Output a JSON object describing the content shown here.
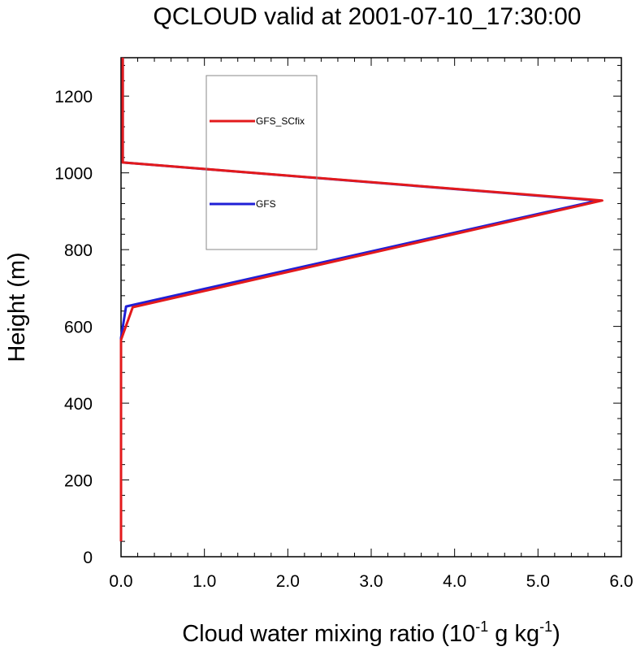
{
  "chart_data": {
    "type": "line",
    "title": "QCLOUD valid at 2001-07-10_17:30:00",
    "xlabel": {
      "main": "Cloud water mixing ratio (10",
      "exp1": "-1",
      "mid": " g kg",
      "exp2": "-1",
      "end": ")"
    },
    "ylabel": "Height (m)",
    "xlim": [
      0,
      6
    ],
    "ylim": [
      0,
      1300
    ],
    "xticks": [
      0,
      1,
      2,
      3,
      4,
      5,
      6
    ],
    "xtick_labels": [
      "0.0",
      "1.0",
      "2.0",
      "3.0",
      "4.0",
      "5.0",
      "6.0"
    ],
    "yticks": [
      0,
      200,
      400,
      600,
      800,
      1000,
      1200
    ],
    "ytick_labels": [
      "0",
      "200",
      "400",
      "600",
      "800",
      "1000",
      "1200"
    ],
    "grid": false,
    "legend": "upper-left-inside",
    "series": [
      {
        "name": "GFS",
        "color": "#1f1fd6",
        "x": [
          0.0,
          0.0,
          0.0,
          0.06,
          5.72,
          0.02,
          0.02
        ],
        "y": [
          40,
          570,
          570,
          652,
          928,
          1027,
          1300
        ]
      },
      {
        "name": "GFS_SCfix",
        "color": "#e31a1c",
        "x": [
          0.0,
          0.0,
          0.0,
          0.14,
          5.77,
          0.02,
          0.02
        ],
        "y": [
          40,
          565,
          565,
          650,
          928,
          1027,
          1300
        ]
      }
    ],
    "legend_order": [
      "GFS_SCfix",
      "GFS"
    ]
  }
}
